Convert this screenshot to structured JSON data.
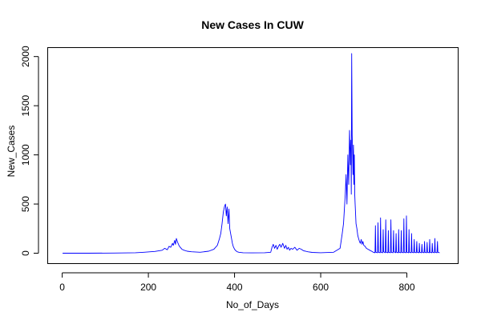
{
  "chart_data": {
    "type": "line",
    "title": "New Cases In CUW",
    "xlabel": "No_of_Days",
    "ylabel": "New_Cases",
    "xlim": [
      0,
      880
    ],
    "ylim": [
      0,
      2100
    ],
    "xticks": [
      0,
      200,
      400,
      600,
      800
    ],
    "yticks": [
      0,
      500,
      1000,
      1500,
      2000
    ],
    "grid": false,
    "legend": "none",
    "color": "#0000ff",
    "series": [
      {
        "x": [
          1,
          60,
          120,
          170,
          190,
          205,
          215,
          225,
          232,
          238,
          244,
          248,
          252,
          256,
          258,
          261,
          263,
          265,
          268,
          271,
          274,
          278,
          283,
          290,
          300,
          320,
          340,
          352,
          360,
          365,
          368,
          371,
          374,
          377,
          379,
          381,
          383,
          385,
          387,
          389,
          391,
          393,
          395,
          397,
          400,
          403,
          406,
          410,
          420,
          440,
          470,
          484,
          487,
          490,
          493,
          496,
          499,
          502,
          505,
          508,
          512,
          516,
          519,
          522,
          525,
          528,
          531,
          535,
          540,
          545,
          550,
          555,
          560,
          565,
          570,
          580,
          600,
          630,
          645,
          650,
          653,
          655,
          657,
          659,
          661,
          663,
          665,
          667,
          669,
          670,
          671,
          672,
          673,
          674,
          675,
          676,
          677,
          678,
          679,
          680,
          682,
          684,
          686,
          688,
          690,
          692,
          694,
          696,
          698,
          700,
          703,
          706,
          710,
          714,
          718,
          722,
          726,
          727,
          728,
          732,
          733,
          734,
          738,
          739,
          740,
          744,
          745,
          746,
          750,
          751,
          752,
          756,
          757,
          758,
          762,
          763,
          764,
          768,
          769,
          770,
          774,
          775,
          776,
          780,
          781,
          782,
          786,
          787,
          788,
          792,
          793,
          794,
          798,
          799,
          800,
          804,
          805,
          806,
          810,
          811,
          812,
          816,
          817,
          818,
          822,
          823,
          824,
          828,
          829,
          830,
          834,
          835,
          836,
          840,
          841,
          842,
          846,
          847,
          848,
          852,
          853,
          854,
          858,
          859,
          860,
          864,
          865,
          866,
          870,
          871,
          872,
          876
        ],
        "y": [
          0,
          0,
          2,
          5,
          10,
          15,
          18,
          25,
          30,
          50,
          35,
          70,
          60,
          100,
          80,
          130,
          90,
          150,
          110,
          80,
          60,
          40,
          30,
          20,
          15,
          10,
          20,
          40,
          80,
          150,
          200,
          300,
          420,
          480,
          500,
          380,
          470,
          300,
          450,
          250,
          200,
          150,
          100,
          70,
          40,
          25,
          15,
          10,
          5,
          3,
          5,
          10,
          60,
          90,
          50,
          80,
          40,
          70,
          90,
          60,
          100,
          50,
          80,
          40,
          60,
          30,
          50,
          40,
          60,
          30,
          50,
          40,
          25,
          20,
          15,
          8,
          5,
          10,
          50,
          200,
          300,
          450,
          600,
          800,
          500,
          1000,
          700,
          1250,
          900,
          1150,
          600,
          2030,
          1200,
          1050,
          800,
          1100,
          700,
          1000,
          600,
          500,
          300,
          250,
          180,
          150,
          120,
          100,
          140,
          90,
          120,
          80,
          70,
          50,
          40,
          30,
          20,
          10,
          5,
          280,
          10,
          5,
          310,
          10,
          5,
          360,
          10,
          5,
          240,
          15,
          5,
          340,
          10,
          5,
          230,
          10,
          5,
          340,
          10,
          5,
          230,
          15,
          5,
          200,
          10,
          5,
          240,
          10,
          5,
          230,
          10,
          5,
          350,
          10,
          5,
          380,
          10,
          5,
          240,
          10,
          5,
          200,
          10,
          5,
          140,
          10,
          5,
          120,
          10,
          5,
          100,
          10,
          5,
          90,
          10,
          5,
          120,
          10,
          5,
          110,
          10,
          5,
          140,
          10,
          5,
          100,
          10,
          5,
          150,
          10,
          5,
          120,
          10,
          5
        ]
      }
    ]
  }
}
